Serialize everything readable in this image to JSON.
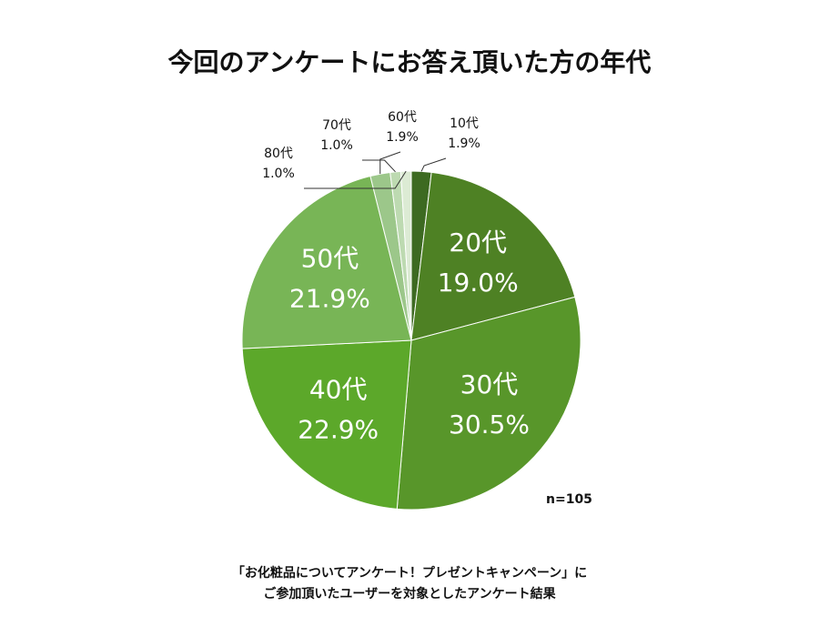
{
  "chart_data": {
    "type": "pie",
    "title": "今回のアンケートにお答え頂いた方の年代",
    "categories": [
      "10代",
      "20代",
      "30代",
      "40代",
      "50代",
      "60代",
      "70代",
      "80代"
    ],
    "values": [
      1.9,
      19.0,
      30.5,
      22.9,
      21.9,
      1.9,
      1.0,
      1.0
    ],
    "value_labels": [
      "1.9%",
      "19.0%",
      "30.5%",
      "22.9%",
      "21.9%",
      "1.9%",
      "1.0%",
      "1.0%"
    ],
    "colors": [
      "#3d6a21",
      "#4e8124",
      "#58962a",
      "#5ca82a",
      "#78b556",
      "#9cc78a",
      "#bddab1",
      "#dcebd4"
    ],
    "annotation": "n=105",
    "footnote": [
      "「お化粧品についてアンケート！プレゼントキャンペーン」に",
      "ご参加頂いたユーザーを対象としたアンケート結果"
    ]
  }
}
